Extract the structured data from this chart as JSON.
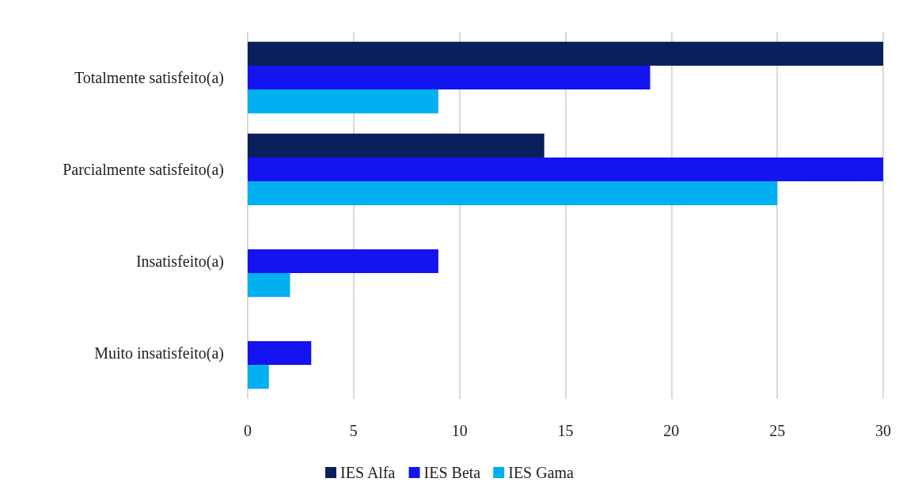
{
  "chart_data": {
    "type": "bar",
    "orientation": "horizontal",
    "categories": [
      "Totalmente satisfeito(a)",
      "Parcialmente satisfeito(a)",
      "Insatisfeito(a)",
      "Muito insatisfeito(a)"
    ],
    "series": [
      {
        "name": "IES Alfa",
        "color": "#0b1f5c",
        "values": [
          30,
          14,
          0,
          0
        ]
      },
      {
        "name": "IES Beta",
        "color": "#1414f0",
        "values": [
          19,
          30,
          9,
          3
        ]
      },
      {
        "name": "IES Gama",
        "color": "#00b0f0",
        "values": [
          9,
          25,
          2,
          1
        ]
      }
    ],
    "xlim": [
      0,
      30
    ],
    "xticks": [
      0,
      5,
      10,
      15,
      20,
      25,
      30
    ],
    "grid": "x",
    "legend": "bottom"
  }
}
